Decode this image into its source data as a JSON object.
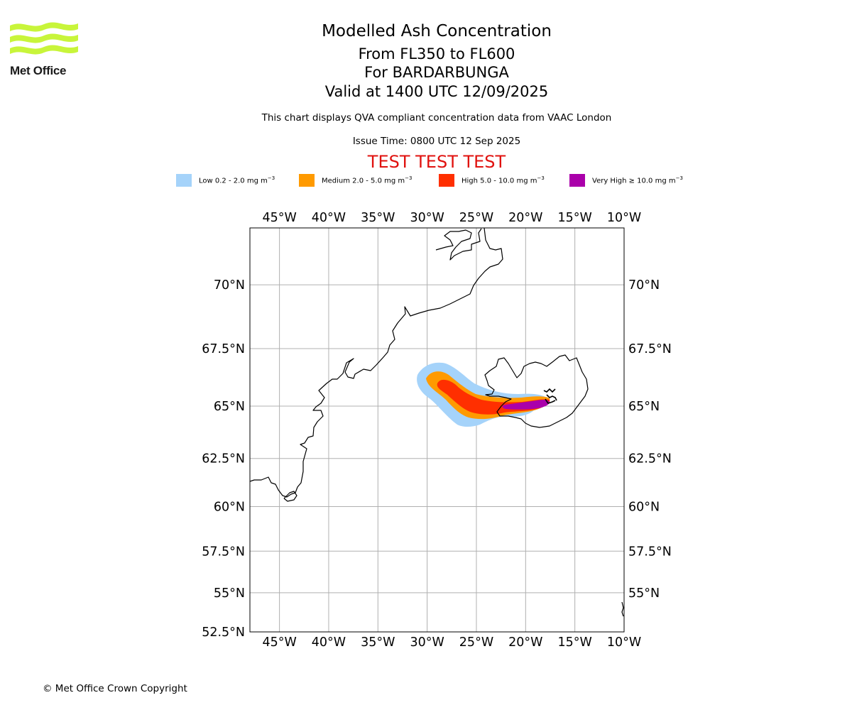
{
  "header": {
    "logo_text": "Met Office",
    "title": "Modelled Ash Concentration",
    "levels": "From FL350 to FL600",
    "volcano": "For BARDARBUNGA",
    "valid": "Valid at 1400 UTC 12/09/2025",
    "compliance_note": "This chart displays QVA compliant concentration data from VAAC London",
    "issue_time": "Issue Time: 0800 UTC 12 Sep 2025",
    "test_banner": "TEST TEST TEST"
  },
  "legend": [
    {
      "label": "Low 0.2 - 2.0 mg m",
      "unit_exp": "−3",
      "color": "#a5d3fa"
    },
    {
      "label": "Medium 2.0 - 5.0 mg m",
      "unit_exp": "−3",
      "color": "#ff9a00"
    },
    {
      "label": "High 5.0 - 10.0 mg m",
      "unit_exp": "−3",
      "color": "#ff2f00"
    },
    {
      "label": "Very High  ≥  10.0 mg m",
      "unit_exp": "−3",
      "color": "#aa00aa"
    }
  ],
  "map": {
    "lon_range": [
      -48,
      -10
    ],
    "lat_range": [
      52.5,
      72
    ],
    "lon_ticks": [
      {
        "value": -45,
        "label": "45°W"
      },
      {
        "value": -40,
        "label": "40°W"
      },
      {
        "value": -35,
        "label": "35°W"
      },
      {
        "value": -30,
        "label": "30°W"
      },
      {
        "value": -25,
        "label": "25°W"
      },
      {
        "value": -20,
        "label": "20°W"
      },
      {
        "value": -15,
        "label": "15°W"
      },
      {
        "value": -10,
        "label": "10°W"
      }
    ],
    "lat_ticks": [
      {
        "value": 70,
        "label": "70°N"
      },
      {
        "value": 67.5,
        "label": "67.5°N"
      },
      {
        "value": 65,
        "label": "65°N"
      },
      {
        "value": 62.5,
        "label": "62.5°N"
      },
      {
        "value": 60,
        "label": "60°N"
      },
      {
        "value": 57.5,
        "label": "57.5°N"
      },
      {
        "value": 55,
        "label": "55°N"
      },
      {
        "value": 52.5,
        "label": "52.5°N"
      }
    ],
    "grid": true,
    "gridline_color": "#b0b0b0",
    "volcano_location": {
      "lon": -17.5,
      "lat": 64.6
    }
  },
  "footer": {
    "copyright": "© Met Office Crown Copyright"
  }
}
